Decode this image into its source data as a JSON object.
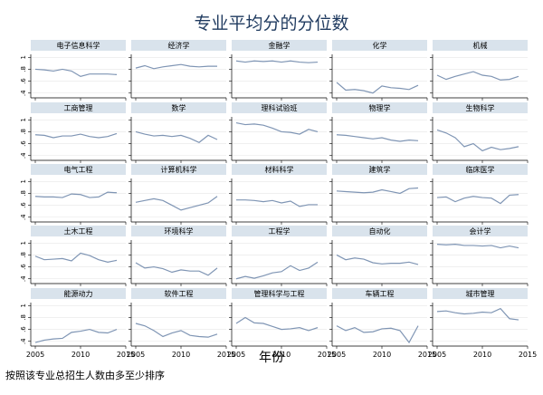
{
  "title": "专业平均分的分位数",
  "x_axis_title": "年份",
  "footnote": "按照该专业总招生人数由多至少排序",
  "colors": {
    "line": "#7f95b4",
    "panel_header": "#d9e3ec",
    "title": "#1f3a5f",
    "grid": "#e6e6e6",
    "axis": "#000000",
    "text": "#000000"
  },
  "chart_data": {
    "type": "line",
    "facets": {
      "rows": 5,
      "cols": 5,
      "order": "row-major"
    },
    "x": [
      2005,
      2006,
      2007,
      2008,
      2009,
      2010,
      2011,
      2012,
      2013,
      2014
    ],
    "xlim": [
      2004.5,
      2015
    ],
    "xticks": [
      2005,
      2010,
      2015
    ],
    "ylim": [
      0.32,
      1.05
    ],
    "yticks": [
      0.4,
      0.6,
      0.8,
      1
    ],
    "ytick_labels": [
      ".4",
      ".6",
      ".8",
      "1"
    ],
    "ytick_labels_shown_on_col": 1,
    "xtick_labels_shown_on_row": 5,
    "grid": true,
    "panels": [
      {
        "name": "电子信息科学",
        "values": [
          0.8,
          0.79,
          0.77,
          0.8,
          0.77,
          0.68,
          0.72,
          0.72,
          0.72,
          0.71
        ]
      },
      {
        "name": "经济学",
        "values": [
          0.82,
          0.86,
          0.81,
          0.84,
          0.86,
          0.88,
          0.85,
          0.84,
          0.85,
          0.85
        ]
      },
      {
        "name": "金融学",
        "values": [
          0.94,
          0.92,
          0.94,
          0.93,
          0.94,
          0.92,
          0.94,
          0.92,
          0.91,
          0.92
        ]
      },
      {
        "name": "化学",
        "values": [
          0.58,
          0.45,
          0.46,
          0.44,
          0.4,
          0.52,
          0.49,
          0.48,
          0.46,
          0.53
        ]
      },
      {
        "name": "机械",
        "values": [
          0.7,
          0.63,
          0.68,
          0.72,
          0.76,
          0.7,
          0.68,
          0.62,
          0.63,
          0.68
        ]
      },
      {
        "name": "工商管理",
        "values": [
          0.75,
          0.74,
          0.7,
          0.73,
          0.73,
          0.76,
          0.72,
          0.7,
          0.72,
          0.77
        ]
      },
      {
        "name": "数学",
        "values": [
          0.8,
          0.76,
          0.73,
          0.74,
          0.72,
          0.74,
          0.69,
          0.62,
          0.74,
          0.67
        ]
      },
      {
        "name": "理科试验班",
        "values": [
          0.95,
          0.92,
          0.93,
          0.91,
          0.86,
          0.8,
          0.79,
          0.76,
          0.84,
          0.8
        ]
      },
      {
        "name": "物理学",
        "values": [
          0.75,
          0.74,
          0.72,
          0.7,
          0.68,
          0.7,
          0.66,
          0.64,
          0.66,
          0.65
        ]
      },
      {
        "name": "生物科学",
        "values": [
          0.83,
          0.78,
          0.7,
          0.55,
          0.6,
          0.48,
          0.54,
          0.5,
          0.52,
          0.55
        ]
      },
      {
        "name": "电气工程",
        "values": [
          0.75,
          0.74,
          0.74,
          0.73,
          0.79,
          0.78,
          0.73,
          0.74,
          0.82,
          0.81
        ]
      },
      {
        "name": "计算机科学",
        "values": [
          0.65,
          0.68,
          0.71,
          0.68,
          0.6,
          0.52,
          0.56,
          0.6,
          0.64,
          0.75
        ]
      },
      {
        "name": "材料科学",
        "values": [
          0.69,
          0.69,
          0.68,
          0.66,
          0.68,
          0.64,
          0.67,
          0.58,
          0.61,
          0.61
        ]
      },
      {
        "name": "建筑学",
        "values": [
          0.84,
          0.83,
          0.82,
          0.81,
          0.82,
          0.86,
          0.83,
          0.8,
          0.88,
          0.89
        ]
      },
      {
        "name": "临床医学",
        "values": [
          0.73,
          0.74,
          0.66,
          0.72,
          0.75,
          0.73,
          0.72,
          0.63,
          0.77,
          0.78
        ]
      },
      {
        "name": "土木工程",
        "values": [
          0.78,
          0.72,
          0.73,
          0.74,
          0.7,
          0.83,
          0.79,
          0.72,
          0.68,
          0.71
        ]
      },
      {
        "name": "环境科学",
        "values": [
          0.67,
          0.58,
          0.6,
          0.57,
          0.51,
          0.55,
          0.53,
          0.53,
          0.46,
          0.58
        ]
      },
      {
        "name": "工程学",
        "values": [
          0.4,
          0.44,
          0.41,
          0.45,
          0.5,
          0.52,
          0.62,
          0.54,
          0.58,
          0.68
        ]
      },
      {
        "name": "自动化",
        "values": [
          0.8,
          0.72,
          0.75,
          0.73,
          0.67,
          0.65,
          0.66,
          0.66,
          0.68,
          0.64
        ]
      },
      {
        "name": "会计学",
        "values": [
          0.98,
          0.97,
          0.98,
          0.96,
          0.96,
          0.95,
          0.96,
          0.92,
          0.95,
          0.92
        ]
      },
      {
        "name": "能源动力",
        "values": [
          0.38,
          0.42,
          0.44,
          0.45,
          0.55,
          0.57,
          0.6,
          0.55,
          0.54,
          0.6
        ]
      },
      {
        "name": "软件工程",
        "values": [
          0.7,
          0.66,
          0.58,
          0.48,
          0.54,
          0.58,
          0.5,
          0.48,
          0.47,
          0.52
        ]
      },
      {
        "name": "管理科学与工程",
        "values": [
          0.7,
          0.8,
          0.71,
          0.7,
          0.65,
          0.6,
          0.61,
          0.63,
          0.58,
          0.63
        ]
      },
      {
        "name": "车辆工程",
        "values": [
          0.66,
          0.58,
          0.63,
          0.55,
          0.56,
          0.61,
          0.62,
          0.58,
          0.38,
          0.66
        ]
      },
      {
        "name": "城市管理",
        "values": [
          0.9,
          0.91,
          0.88,
          0.86,
          0.87,
          0.89,
          0.88,
          0.95,
          0.78,
          0.76
        ]
      }
    ]
  }
}
